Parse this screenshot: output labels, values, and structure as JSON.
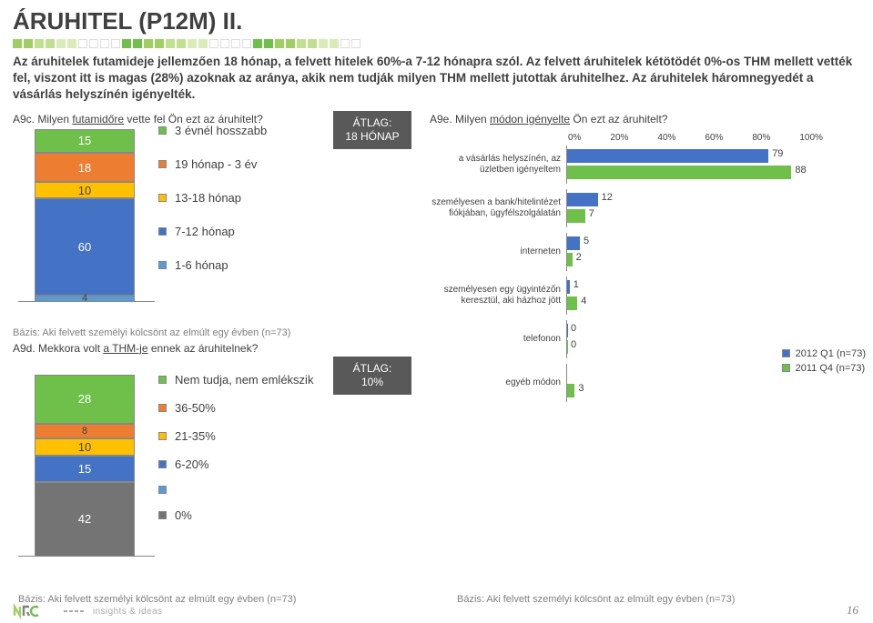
{
  "title": "ÁRUHITEL (P12M) II.",
  "summary": "Az áruhitelek futamideje jellemzően 18 hónap, a felvett hitelek 60%-a 7-12 hónapra szól. Az felvett áruhitelek kétötödét 0%-os THM mellett vették fel, viszont itt is magas (28%) azoknak az aránya, akik nem tudják milyen THM mellett jutottak áruhitelhez. Az áruhitelek háromnegyedét a vásárlás helyszínén igényelték.",
  "decor_colors": [
    "#9fce63",
    "#9fce63",
    "#bfe08f",
    "#bfe08f",
    "#d9ecb8",
    "#d9ecb8",
    "#ffffff",
    "#ffffff",
    "#ffffff",
    "#ffffff",
    "#6fbf4b",
    "#6fbf4b",
    "#9fce63",
    "#9fce63",
    "#bfe08f",
    "#bfe08f",
    "#d9ecb8",
    "#d9ecb8",
    "#ffffff",
    "#ffffff",
    "#ffffff",
    "#ffffff",
    "#6fbf4b",
    "#6fbf4b",
    "#9fce63",
    "#9fce63",
    "#bfe08f",
    "#bfe08f",
    "#d9ecb8",
    "#d9ecb8",
    "#ffffff",
    "#ffffff"
  ],
  "a9c": {
    "title_pre": "A9c. Milyen ",
    "title_u": "futamidőre",
    "title_post": " vette fel Ön ezt az áruhitelt?",
    "avg_label1": "ÁTLAG:",
    "avg_label2": "18 HÓNAP",
    "segments": [
      {
        "label": "15",
        "value": 15,
        "color": "#6fbf4b"
      },
      {
        "label": "18",
        "value": 18,
        "color": "#ed7d31"
      },
      {
        "label": "10",
        "value": 10,
        "color": "#ffc000"
      },
      {
        "label": "60",
        "value": 60,
        "color": "#4472c4"
      },
      {
        "label": "4",
        "value": 4,
        "color": "#5b9bd5"
      }
    ],
    "legend": [
      {
        "label": "3 évnél hosszabb",
        "color": "#6fbf4b"
      },
      {
        "label": "19 hónap - 3 év",
        "color": "#ed7d31"
      },
      {
        "label": "13-18 hónap",
        "color": "#ffc000"
      },
      {
        "label": "7-12 hónap",
        "color": "#4472c4"
      },
      {
        "label": "1-6 hónap",
        "color": "#5b9bd5"
      }
    ],
    "basis": "Bázis: Aki felvett személyi kölcsönt az elmúlt egy évben (n=73)"
  },
  "a9d": {
    "title_pre": "A9d. Mekkora volt ",
    "title_u": "a THM-je",
    "title_post": " ennek az áruhitelnek?",
    "avg_label1": "ÁTLAG:",
    "avg_label2": "10%",
    "segments": [
      {
        "label": "28",
        "value": 28,
        "color": "#6fbf4b"
      },
      {
        "label": "8",
        "value": 8,
        "color": "#ed7d31"
      },
      {
        "label": "10",
        "value": 10,
        "color": "#ffc000"
      },
      {
        "label": "15",
        "value": 15,
        "color": "#4472c4"
      },
      {
        "label": "",
        "value": 0,
        "color": "#5b9bd5"
      },
      {
        "label": "42",
        "value": 42,
        "color": "#747474"
      }
    ],
    "legend": [
      {
        "label": "Nem tudja, nem emlékszik",
        "color": "#6fbf4b"
      },
      {
        "label": "36-50%",
        "color": "#ed7d31"
      },
      {
        "label": "21-35%",
        "color": "#ffc000"
      },
      {
        "label": "6-20%",
        "color": "#4472c4"
      },
      {
        "label": "",
        "color": "#5b9bd5"
      },
      {
        "label": "0%",
        "color": "#747474"
      }
    ],
    "basis": "Bázis: Aki felvett személyi kölcsönt az elmúlt egy évben (n=73)"
  },
  "a9e": {
    "title_pre": "A9e. Milyen ",
    "title_u": "módon igényelte",
    "title_post": " Ön ezt az áruhitelt?",
    "axis": [
      "0%",
      "20%",
      "40%",
      "60%",
      "80%",
      "100%"
    ],
    "rows": [
      {
        "label": "a vásárlás helyszínén, az üzletben igényeltem",
        "v1": 79,
        "v2": 88
      },
      {
        "label": "személyesen a bank/hitelintézet fiókjában, ügyfélszolgálatán",
        "v1": 12,
        "v2": 7
      },
      {
        "label": "interneten",
        "v1": 5,
        "v2": 2
      },
      {
        "label": "személyesen egy ügyintézőn keresztül, aki házhoz jött",
        "v1": 1,
        "v2": 4
      },
      {
        "label": "telefonon",
        "v1": 0,
        "v2": 0
      },
      {
        "label": "egyéb módon",
        "v1": null,
        "v2": 3
      }
    ],
    "series": [
      {
        "label": "2012 Q1 (n=73)",
        "color": "#4472c4"
      },
      {
        "label": "2011 Q4 (n=73)",
        "color": "#6fbf4b"
      }
    ],
    "basis": "Bázis: Aki felvett személyi kölcsönt az elmúlt egy évben (n=73)"
  },
  "logo_text": "insights & ideas",
  "page_number": "16",
  "colors": {
    "text": "#404040",
    "gray": "#808080",
    "dark_box": "#595959",
    "series1": "#4472c4",
    "series2": "#6fbf4b"
  }
}
